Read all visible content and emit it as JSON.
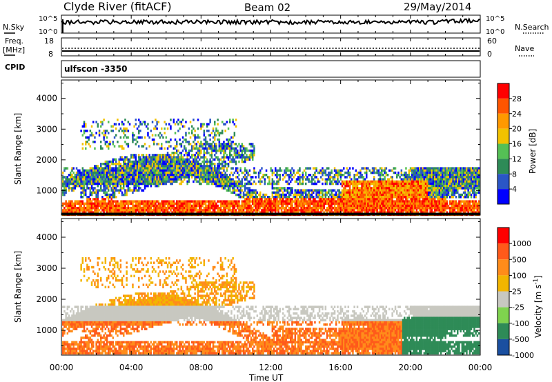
{
  "header": {
    "title": "Clyde River (fitACF)",
    "beam": "Beam 02",
    "date": "29/May/2014"
  },
  "noise_panel": {
    "left_label": "N.Sky",
    "right_label": "N.Search",
    "left_ticks": [
      "10^5",
      "10^0"
    ],
    "right_ticks": [
      "10^5",
      "10^0"
    ]
  },
  "freq_panel": {
    "left_label_1": "Freq.",
    "left_label_2": "[MHz]",
    "left_ticks": [
      "18",
      "8"
    ],
    "right_label": "Nave",
    "right_ticks": [
      "60",
      "0"
    ],
    "cpid_label": "CPID",
    "cpid_value": "ulfscon -3350"
  },
  "colors": {
    "power_scale": [
      "#0000ff",
      "#2a56c6",
      "#2e8b57",
      "#55c055",
      "#f2c200",
      "#ff9900",
      "#ff5500",
      "#ff0000"
    ],
    "velocity_scale": [
      "#1a4fa0",
      "#2e8b57",
      "#7fd34e",
      "#c8c8c0",
      "#f2b500",
      "#ff8c1a",
      "#ff5a1a",
      "#ff0000"
    ]
  },
  "chart_data": [
    {
      "type": "heatmap",
      "panel": "power",
      "ylabel": "Slant Range [km]",
      "xlabel": "Time UT",
      "yticks": [
        1000,
        2000,
        3000,
        4000
      ],
      "ylim": [
        200,
        4600
      ],
      "xticks": [
        "00:00",
        "04:00",
        "08:00",
        "12:00",
        "16:00",
        "20:00",
        "00:00"
      ],
      "xlim_hours": [
        0,
        24
      ],
      "colorbar": {
        "label": "Power [dB]",
        "ticks": [
          "28",
          "24",
          "20",
          "16",
          "12",
          "8",
          "4"
        ],
        "levels": [
          0,
          4,
          8,
          12,
          16,
          20,
          24,
          28,
          32
        ]
      }
    },
    {
      "type": "heatmap",
      "panel": "velocity",
      "ylabel": "Slant Range [km]",
      "xlabel": "Time UT",
      "yticks": [
        1000,
        2000,
        3000,
        4000
      ],
      "ylim": [
        200,
        4600
      ],
      "xticks": [
        "00:00",
        "04:00",
        "08:00",
        "12:00",
        "16:00",
        "20:00",
        "00:00"
      ],
      "xlim_hours": [
        0,
        24
      ],
      "colorbar": {
        "label": "Velocity [m s",
        "label_sup": "-1",
        "label_end": "]",
        "ticks": [
          "1000",
          "500",
          "100",
          "25",
          "-25",
          "-100",
          "-500",
          "-1000"
        ]
      }
    }
  ]
}
